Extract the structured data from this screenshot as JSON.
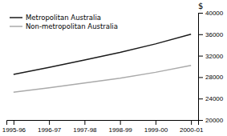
{
  "chart_data": {
    "type": "line",
    "categories": [
      "1995-96",
      "1996-97",
      "1997-98",
      "1998-99",
      "1999-00",
      "2000-01"
    ],
    "series": [
      {
        "name": "Metropolitan Australia",
        "color": "#1a1a1a",
        "values": [
          28500,
          29800,
          31200,
          32600,
          34200,
          36000
        ]
      },
      {
        "name": "Non-metropolitan Australia",
        "color": "#aaaaaa",
        "values": [
          25200,
          26000,
          26900,
          27800,
          28900,
          30200
        ]
      }
    ],
    "y_label": "$",
    "ylim": [
      20000,
      40000
    ],
    "yticks": [
      20000,
      24000,
      28000,
      32000,
      36000,
      40000
    ],
    "grid": false,
    "legend": "upper left"
  }
}
